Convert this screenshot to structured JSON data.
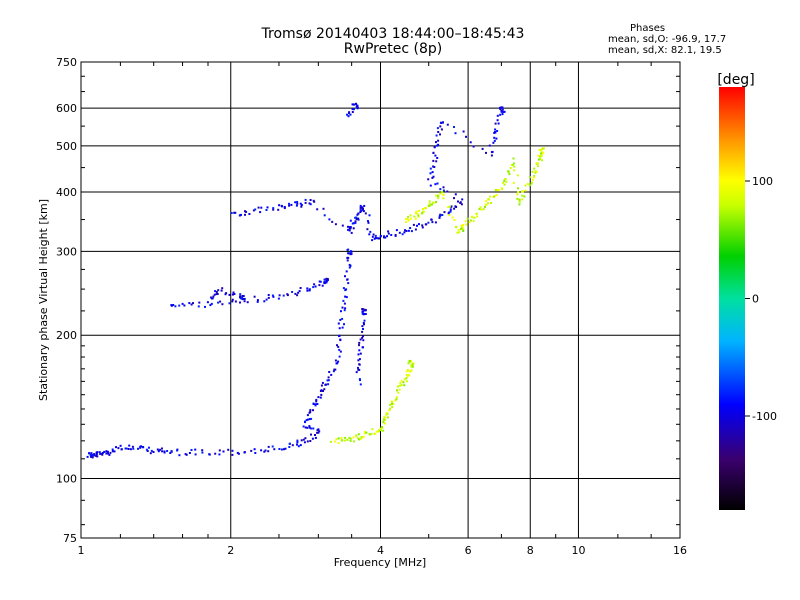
{
  "header": {
    "title_line1": "Tromsø 20140403 18:44:00–18:45:43",
    "title_line2": "RwPretec (8p)"
  },
  "stats": {
    "title": "Phases",
    "line_o": "mean, sd,O:  -96.9, 17.7",
    "line_x": "mean, sd,X:  82.1, 19.5"
  },
  "chart_data": {
    "type": "scatter",
    "title": "Tromsø 20140403 18:44:00–18:45:43",
    "subtitle": "RwPretec (8p)",
    "xlabel": "Frequency [MHz]",
    "ylabel": "Stationary phase Virtual Height [km]",
    "x_scale": "log",
    "y_scale": "log",
    "xlim": [
      1,
      16
    ],
    "ylim": [
      75,
      750
    ],
    "x_ticks": [
      1,
      2,
      4,
      6,
      8,
      10,
      16
    ],
    "x_tick_labels": [
      "1",
      "2",
      "4",
      "6",
      "8",
      "10",
      "16"
    ],
    "y_ticks": [
      75,
      100,
      200,
      300,
      400,
      500,
      600,
      750
    ],
    "y_tick_labels": [
      "75",
      "100",
      "200",
      "300",
      "400",
      "500",
      "600",
      "750"
    ],
    "grid": true,
    "colorbar": {
      "label": "[deg]",
      "range": [
        -180,
        180
      ],
      "ticks": [
        -100,
        0,
        100
      ],
      "tick_labels": [
        "-100",
        "0",
        "100"
      ],
      "colors": [
        "#000000",
        "#3a006e",
        "#0000ff",
        "#00b4ff",
        "#00e0a0",
        "#00d000",
        "#c8ff00",
        "#ffff00",
        "#ff9000",
        "#ff0000"
      ]
    },
    "series": [
      {
        "polarity": "O",
        "phase": -96.9,
        "trace": [
          [
            1.03,
            113
          ],
          [
            1.05,
            112
          ],
          [
            1.08,
            113
          ],
          [
            1.12,
            114
          ],
          [
            1.2,
            117
          ],
          [
            1.3,
            116
          ],
          [
            1.4,
            115
          ],
          [
            1.5,
            114
          ],
          [
            1.7,
            114
          ],
          [
            2.0,
            114
          ],
          [
            2.3,
            115
          ],
          [
            2.6,
            117
          ],
          [
            2.8,
            120
          ],
          [
            3.0,
            125
          ],
          [
            2.8,
            130
          ],
          [
            2.9,
            140
          ],
          [
            3.0,
            150
          ],
          [
            3.1,
            160
          ],
          [
            3.25,
            175
          ],
          [
            3.3,
            200
          ],
          [
            3.35,
            230
          ],
          [
            3.4,
            260
          ],
          [
            3.45,
            300
          ],
          [
            3.6,
            160
          ],
          [
            3.62,
            180
          ],
          [
            3.65,
            200
          ],
          [
            3.7,
            225
          ],
          [
            1.5,
            232
          ],
          [
            1.7,
            233
          ],
          [
            2.0,
            236
          ],
          [
            2.3,
            240
          ],
          [
            2.6,
            245
          ],
          [
            2.9,
            252
          ],
          [
            3.1,
            262
          ],
          [
            1.8,
            240
          ],
          [
            1.9,
            250
          ],
          [
            2.1,
            242
          ],
          [
            2.0,
            362
          ],
          [
            2.2,
            366
          ],
          [
            2.5,
            372
          ],
          [
            2.7,
            378
          ],
          [
            2.9,
            384
          ],
          [
            3.45,
            330
          ],
          [
            3.5,
            345
          ],
          [
            3.6,
            360
          ],
          [
            3.7,
            380
          ],
          [
            3.8,
            322
          ],
          [
            4.0,
            325
          ],
          [
            4.3,
            330
          ],
          [
            4.7,
            338
          ],
          [
            5.1,
            350
          ],
          [
            5.5,
            365
          ],
          [
            5.8,
            385
          ],
          [
            5.0,
            420
          ],
          [
            5.1,
            470
          ],
          [
            5.2,
            520
          ],
          [
            5.3,
            570
          ],
          [
            6.6,
            480
          ],
          [
            6.8,
            540
          ],
          [
            7.0,
            600
          ],
          [
            3.4,
            580
          ],
          [
            3.55,
            610
          ]
        ]
      },
      {
        "polarity": "X",
        "phase": 82.1,
        "trace": [
          [
            3.2,
            120
          ],
          [
            3.4,
            121
          ],
          [
            3.6,
            123
          ],
          [
            3.8,
            125
          ],
          [
            4.0,
            128
          ],
          [
            4.1,
            135
          ],
          [
            4.2,
            145
          ],
          [
            4.35,
            155
          ],
          [
            4.5,
            165
          ],
          [
            4.6,
            175
          ],
          [
            4.5,
            350
          ],
          [
            4.7,
            360
          ],
          [
            4.9,
            370
          ],
          [
            5.1,
            385
          ],
          [
            5.3,
            400
          ],
          [
            5.7,
            330
          ],
          [
            5.9,
            345
          ],
          [
            6.2,
            360
          ],
          [
            6.5,
            380
          ],
          [
            6.8,
            400
          ],
          [
            7.1,
            430
          ],
          [
            7.4,
            470
          ],
          [
            7.5,
            380
          ],
          [
            7.8,
            410
          ],
          [
            8.1,
            440
          ],
          [
            8.3,
            470
          ],
          [
            8.4,
            490
          ]
        ]
      }
    ]
  }
}
